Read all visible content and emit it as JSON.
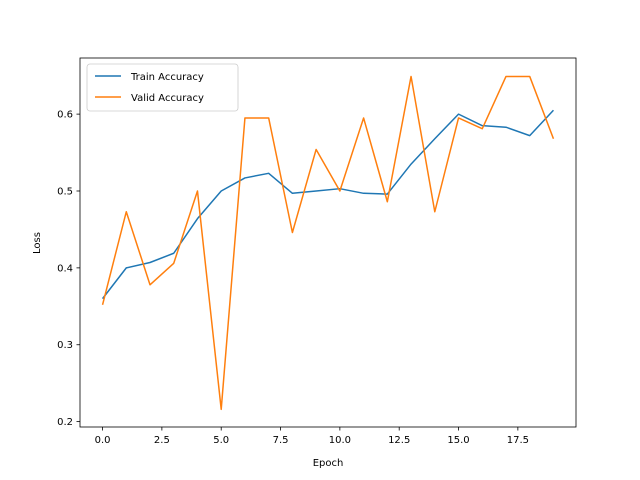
{
  "chart_data": {
    "type": "line",
    "title": "",
    "xlabel": "Epoch",
    "ylabel": "Loss",
    "xlim": [
      -0.95,
      19.95
    ],
    "ylim": [
      0.193,
      0.673
    ],
    "xticks": [
      0.0,
      2.5,
      5.0,
      7.5,
      10.0,
      12.5,
      15.0,
      17.5
    ],
    "xtick_labels": [
      "0.0",
      "2.5",
      "5.0",
      "7.5",
      "10.0",
      "12.5",
      "15.0",
      "17.5"
    ],
    "yticks": [
      0.2,
      0.3,
      0.4,
      0.5,
      0.6
    ],
    "ytick_labels": [
      "0.2",
      "0.3",
      "0.4",
      "0.5",
      "0.6"
    ],
    "x": [
      0,
      1,
      2,
      3,
      4,
      5,
      6,
      7,
      8,
      9,
      10,
      11,
      12,
      13,
      14,
      15,
      16,
      17,
      18,
      19
    ],
    "series": [
      {
        "name": "Train Accuracy",
        "color": "#1f77b4",
        "values": [
          0.36,
          0.4,
          0.407,
          0.419,
          0.464,
          0.5,
          0.517,
          0.523,
          0.497,
          0.5,
          0.503,
          0.497,
          0.496,
          0.535,
          0.568,
          0.6,
          0.585,
          0.583,
          0.572,
          0.605
        ]
      },
      {
        "name": "Valid Accuracy",
        "color": "#ff7f0e",
        "values": [
          0.352,
          0.473,
          0.378,
          0.406,
          0.5,
          0.216,
          0.595,
          0.595,
          0.446,
          0.554,
          0.5,
          0.595,
          0.486,
          0.649,
          0.473,
          0.595,
          0.581,
          0.649,
          0.649,
          0.568
        ]
      }
    ],
    "legend_position": "top-left",
    "grid": false
  }
}
